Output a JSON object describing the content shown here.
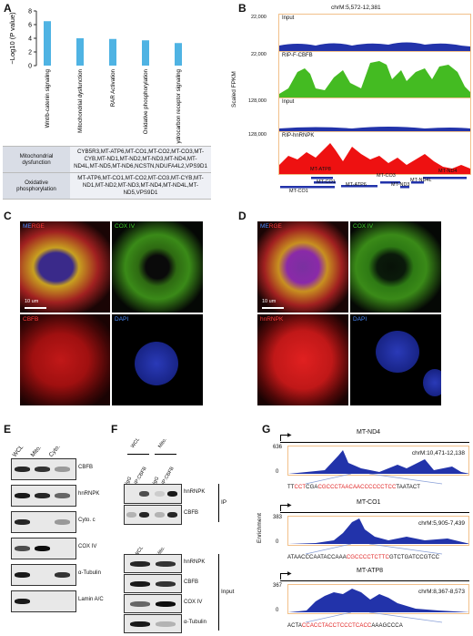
{
  "panels": {
    "A": "A",
    "B": "B",
    "C": "C",
    "D": "D",
    "E": "E",
    "F": "F",
    "G": "G"
  },
  "chart_data": {
    "type": "bar",
    "categories": [
      "Wnt/b-catenin signaling",
      "Mitochondrial dysfunction",
      "RAR Activation",
      "Oxidative phosphorylation",
      "Aryl hydrocarbon receptor signaling"
    ],
    "values": [
      6.5,
      4.0,
      3.9,
      3.7,
      3.3
    ],
    "ylabel": "−Log10 (P value)",
    "ylim": [
      0,
      8
    ],
    "yticks": [
      "0",
      "2",
      "4",
      "6",
      "8"
    ],
    "bar_color": "#4fb3e3"
  },
  "table": [
    {
      "pathway": "Mitochondrial dysfunction",
      "genes": "CYB5R3,MT-ATP6,MT-CO1,MT-CO2,MT-CO3,MT-CYB,MT-ND1,MT-ND2,MT-ND3,MT-ND4,MT-ND4L,MT-ND5,MT-ND6,NCSTN,NDUFA4L2,VPS9D1"
    },
    {
      "pathway": "Oxidative phosphorylation",
      "genes": "MT-ATP6,MT-CO1,MT-CO2,MT-CO3,MT-CYB,MT-ND1,MT-ND2,MT-ND3,MT-ND4,MT-ND4L,MT-ND5,VPS9D1"
    }
  ],
  "panelB": {
    "coord": "chrM:5,572-12,381",
    "ylabel": "Scaled FPKM",
    "tracks": [
      {
        "label": "Input",
        "scale": "22,000",
        "color": "#2233aa"
      },
      {
        "label": "RIP-F-CBFB",
        "scale": "22,000",
        "color": "#44bb22"
      },
      {
        "label": "Input",
        "scale": "128,000",
        "color": "#2233aa"
      },
      {
        "label": "RIP-hnRNPK",
        "scale": "128,000",
        "color": "#ee1111"
      }
    ],
    "genes": [
      "MT-CO1",
      "MT-ATP8",
      "MT-CO1",
      "MT-ATP6",
      "MT-CO3",
      "MT-ND3",
      "MT-ND4L",
      "MT-ND4"
    ]
  },
  "panelC": {
    "merge": "MERGE",
    "cox": "COX IV",
    "cbfb": "CBFB",
    "dapi": "DAPI",
    "scale": "10 um"
  },
  "panelD": {
    "merge": "MERGE",
    "cox": "COX IV",
    "hnrnpk": "hnRNPK",
    "dapi": "DAPI",
    "scale": "10 um"
  },
  "panelE": {
    "cols": [
      "WCL",
      "Mito.",
      "Cyto."
    ],
    "rows": [
      "CBFB",
      "hnRNPK",
      "Cyto. c",
      "COX IV",
      "α-Tubulin",
      "Lamin A/C"
    ]
  },
  "panelF": {
    "ip_cols": [
      "IgG",
      "IP:CBFB",
      "IgG",
      "IP:CBFB"
    ],
    "ip_groups": [
      "WCL",
      "Mito."
    ],
    "ip_rows": [
      "hnRNPK",
      "CBFB"
    ],
    "ip_tag": "IP",
    "input_cols": [
      "WCL",
      "Mito."
    ],
    "input_rows": [
      "hnRNPK",
      "CBFB",
      "COX IV",
      "α-Tubulin"
    ],
    "input_tag": "Input"
  },
  "panelG": {
    "ylabel": "Enrichment",
    "tracks": [
      {
        "gene": "MT-ND4",
        "coord": "chrM:10,471-12,138",
        "ymax": "636",
        "ymin": "0",
        "seq": [
          {
            "t": "TT",
            "r": false
          },
          {
            "t": "CCT",
            "r": true
          },
          {
            "t": "CGA",
            "r": false
          },
          {
            "t": "CGCCCTAACAACCCCCCTCC",
            "r": true
          },
          {
            "t": "TAATACT",
            "r": false
          }
        ]
      },
      {
        "gene": "MT-CO1",
        "coord": "chrM:5,905-7,439",
        "ymax": "383",
        "ymin": "0",
        "seq": [
          {
            "t": "ATAACCCAATACCAAA",
            "r": false
          },
          {
            "t": "CGCCCCTCTTC",
            "r": true
          },
          {
            "t": "GTCTGATCCGTCC",
            "r": false
          }
        ]
      },
      {
        "gene": "MT-ATP8",
        "coord": "chrM:8,367-8,573",
        "ymax": "367",
        "ymin": "0",
        "seq": [
          {
            "t": "ACTA",
            "r": false
          },
          {
            "t": "CCACCTACCTCCCTCACC",
            "r": true
          },
          {
            "t": "AAAGCCCA",
            "r": false
          }
        ]
      }
    ]
  }
}
